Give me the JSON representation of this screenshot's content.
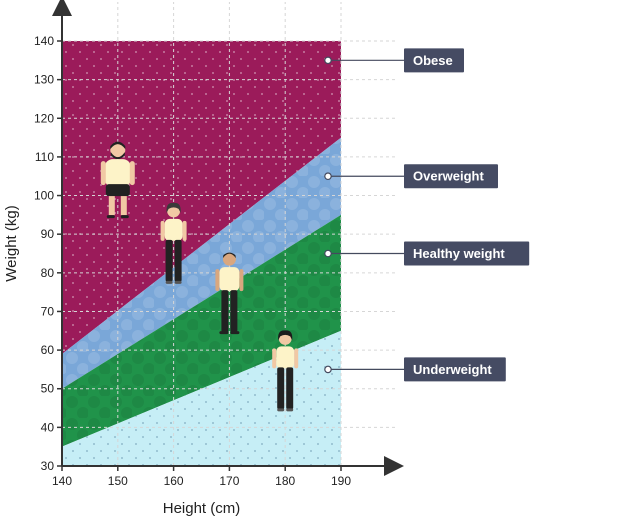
{
  "chart_data": {
    "type": "area",
    "xlabel": "Height (cm)",
    "ylabel": "Weight (kg)",
    "xlim": [
      140,
      190
    ],
    "ylim": [
      30,
      140
    ],
    "xticks": [
      140,
      150,
      160,
      170,
      180,
      190
    ],
    "yticks": [
      30,
      40,
      50,
      60,
      70,
      80,
      90,
      100,
      110,
      120,
      130,
      140
    ],
    "grid": true,
    "bands": [
      {
        "name": "Obese",
        "color": "#9b1b5a",
        "lower": [
          [
            140,
            59
          ],
          [
            190,
            115
          ]
        ],
        "upper": [
          [
            140,
            140
          ],
          [
            190,
            140
          ]
        ],
        "label_y": 135
      },
      {
        "name": "Overweight",
        "color": "#7aa7d8",
        "lower": [
          [
            140,
            50
          ],
          [
            190,
            95
          ]
        ],
        "upper": [
          [
            140,
            59
          ],
          [
            190,
            115
          ]
        ],
        "label_y": 105
      },
      {
        "name": "Healthy weight",
        "color": "#20934a",
        "lower": [
          [
            140,
            35
          ],
          [
            190,
            65
          ]
        ],
        "upper": [
          [
            140,
            50
          ],
          [
            190,
            95
          ]
        ],
        "label_y": 85
      },
      {
        "name": "Underweight",
        "color": "#c6eef6",
        "lower": [
          [
            140,
            30
          ],
          [
            190,
            30
          ]
        ],
        "upper": [
          [
            140,
            35
          ],
          [
            190,
            65
          ]
        ],
        "label_y": 55
      }
    ],
    "people": [
      {
        "height": 150,
        "weight": 104,
        "figure": "man-beard-shorts"
      },
      {
        "height": 160,
        "weight": 88,
        "figure": "woman"
      },
      {
        "height": 170,
        "weight": 75,
        "figure": "man"
      },
      {
        "height": 180,
        "weight": 55,
        "figure": "woman-dark-hair"
      }
    ]
  }
}
